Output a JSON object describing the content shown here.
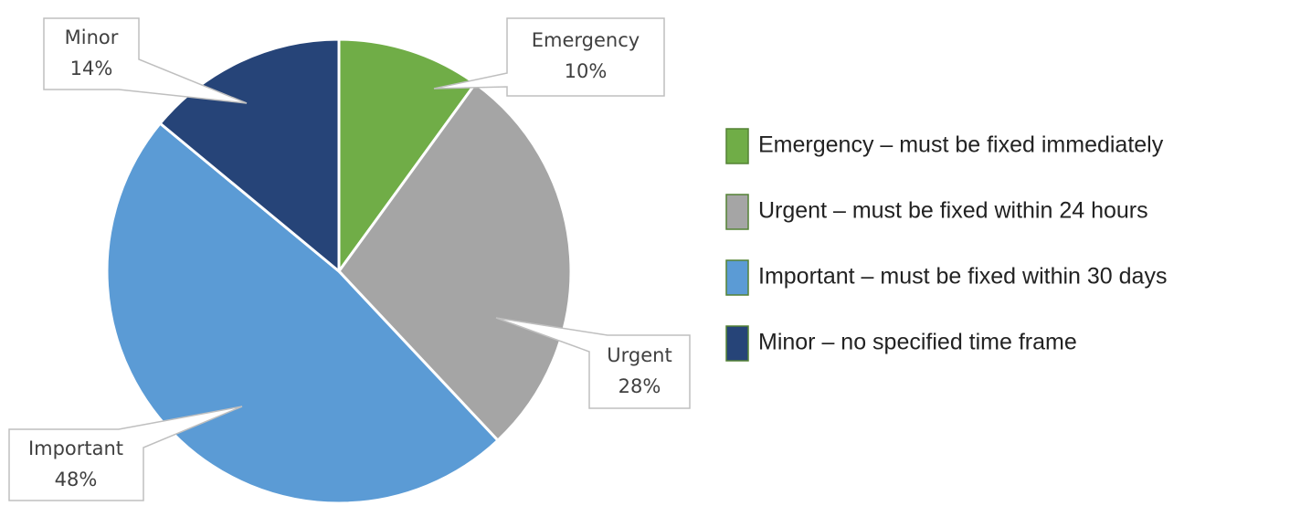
{
  "chart_data": {
    "type": "pie",
    "categories": [
      "Emergency",
      "Urgent",
      "Important",
      "Minor"
    ],
    "values": [
      10,
      28,
      48,
      14
    ],
    "value_labels": [
      "10%",
      "28%",
      "48%",
      "14%"
    ],
    "colors": [
      "#70ad47",
      "#a5a5a5",
      "#5b9bd5",
      "#264478"
    ],
    "legend": [
      "Emergency – must be fixed immediately",
      "Urgent – must be fixed within 24 hours",
      "Important – must be fixed within 30 days",
      "Minor – no specified time frame"
    ],
    "legend_position": "right"
  }
}
